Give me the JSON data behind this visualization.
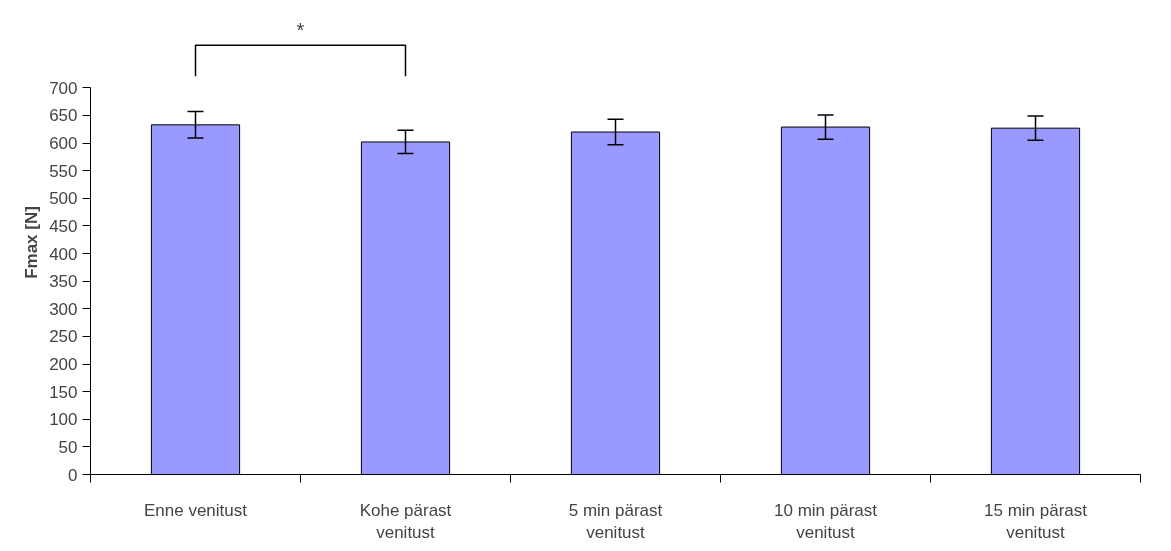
{
  "chart_data": {
    "type": "bar",
    "ylabel": "Fmax [N]",
    "categories": [
      "Enne venitust",
      "Kohe pärast venitust",
      "5 min pärast venitust",
      "10 min pärast venitust",
      "15 min pärast venitust"
    ],
    "values": [
      633,
      602,
      620,
      629,
      627
    ],
    "color": "#9999ff",
    "errors": [
      24,
      21,
      23,
      22,
      22
    ],
    "ylim": [
      0,
      700
    ],
    "yticks": [
      0,
      50,
      100,
      150,
      200,
      250,
      300,
      350,
      400,
      450,
      500,
      550,
      600,
      650,
      700
    ],
    "grid": false,
    "annotations": [
      "*"
    ]
  }
}
